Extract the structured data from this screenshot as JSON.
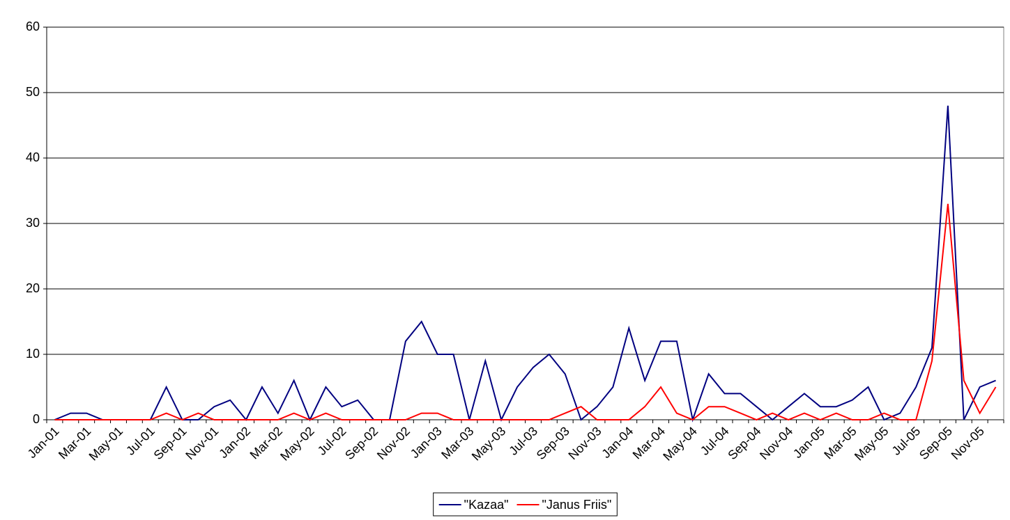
{
  "chart_data": {
    "type": "line",
    "categories": [
      "Jan-01",
      null,
      "Mar-01",
      null,
      "May-01",
      null,
      "Jul-01",
      null,
      "Sep-01",
      null,
      "Nov-01",
      null,
      "Jan-02",
      null,
      "Mar-02",
      null,
      "May-02",
      null,
      "Jul-02",
      null,
      "Sep-02",
      null,
      "Nov-02",
      null,
      "Jan-03",
      null,
      "Mar-03",
      null,
      "May-03",
      null,
      "Jul-03",
      null,
      "Sep-03",
      null,
      "Nov-03",
      null,
      "Jan-04",
      null,
      "Mar-04",
      null,
      "May-04",
      null,
      "Jul-04",
      null,
      "Sep-04",
      null,
      "Nov-04",
      null,
      "Jan-05",
      null,
      "Mar-05",
      null,
      "May-05",
      null,
      "Jul-05",
      null,
      "Sep-05",
      null,
      "Nov-05",
      null
    ],
    "series": [
      {
        "name": "\"Kazaa\"",
        "color": "#000080",
        "values": [
          0,
          1,
          1,
          0,
          0,
          0,
          0,
          5,
          0,
          0,
          2,
          3,
          0,
          5,
          1,
          6,
          0,
          5,
          2,
          3,
          0,
          0,
          12,
          15,
          10,
          10,
          0,
          9,
          0,
          5,
          8,
          10,
          7,
          0,
          2,
          5,
          14,
          6,
          12,
          12,
          0,
          7,
          4,
          4,
          2,
          0,
          2,
          4,
          2,
          2,
          3,
          5,
          0,
          1,
          5,
          11,
          48,
          0,
          5,
          6
        ]
      },
      {
        "name": "\"Janus Friis\"",
        "color": "#ff0000",
        "values": [
          0,
          0,
          0,
          0,
          0,
          0,
          0,
          1,
          0,
          1,
          0,
          0,
          0,
          0,
          0,
          1,
          0,
          1,
          0,
          0,
          0,
          0,
          0,
          1,
          1,
          0,
          0,
          0,
          0,
          0,
          0,
          0,
          1,
          2,
          0,
          0,
          0,
          2,
          5,
          1,
          0,
          2,
          2,
          1,
          0,
          1,
          0,
          1,
          0,
          1,
          0,
          0,
          1,
          0,
          0,
          9,
          33,
          6,
          1,
          5
        ]
      }
    ],
    "ylim": [
      0,
      60
    ],
    "yticks": [
      0,
      10,
      20,
      30,
      40,
      50,
      60
    ],
    "grid": true,
    "legend": "bottom"
  }
}
